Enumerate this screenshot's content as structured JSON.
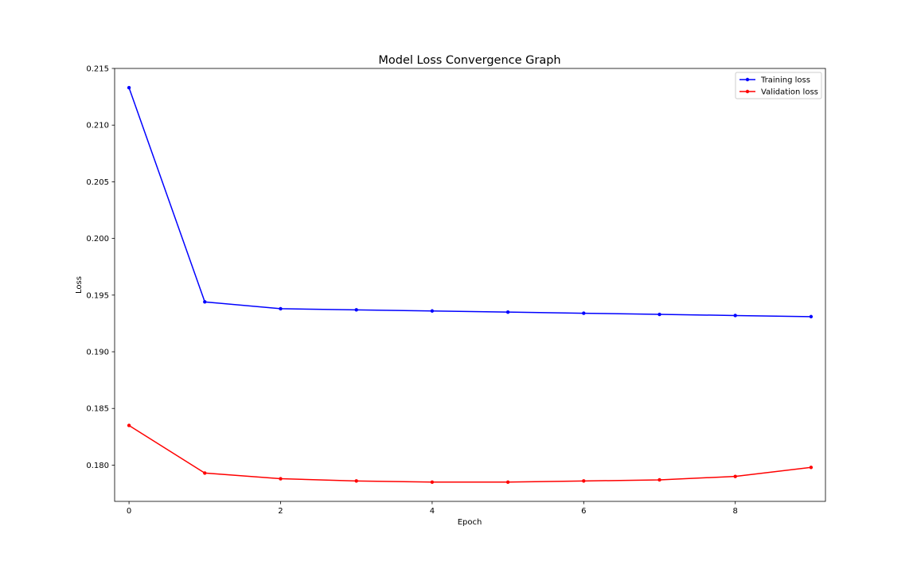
{
  "chart_data": {
    "type": "line",
    "title": "Model Loss Convergence Graph",
    "xlabel": "Epoch",
    "ylabel": "Loss",
    "x": [
      0,
      1,
      2,
      3,
      4,
      5,
      6,
      7,
      8,
      9
    ],
    "xlim": [
      -0.19,
      9.19
    ],
    "ylim": [
      0.1768,
      0.215
    ],
    "xticks": [
      0,
      2,
      4,
      6,
      8
    ],
    "xtick_labels": [
      "0",
      "2",
      "4",
      "6",
      "8"
    ],
    "yticks": [
      0.18,
      0.185,
      0.19,
      0.195,
      0.2,
      0.205,
      0.21,
      0.215
    ],
    "ytick_labels": [
      "0.180",
      "0.185",
      "0.190",
      "0.195",
      "0.200",
      "0.205",
      "0.210",
      "0.215"
    ],
    "grid": false,
    "legend_position": "top-right",
    "series": [
      {
        "name": "Training loss",
        "color": "#0000ff",
        "marker": "dot",
        "values": [
          0.2133,
          0.1944,
          0.1938,
          0.1937,
          0.1936,
          0.1935,
          0.1934,
          0.1933,
          0.1932,
          0.1931
        ]
      },
      {
        "name": "Validation loss",
        "color": "#ff0000",
        "marker": "dot",
        "values": [
          0.1835,
          0.1793,
          0.1788,
          0.1786,
          0.1785,
          0.1785,
          0.1786,
          0.1787,
          0.179,
          0.1798
        ]
      }
    ]
  }
}
